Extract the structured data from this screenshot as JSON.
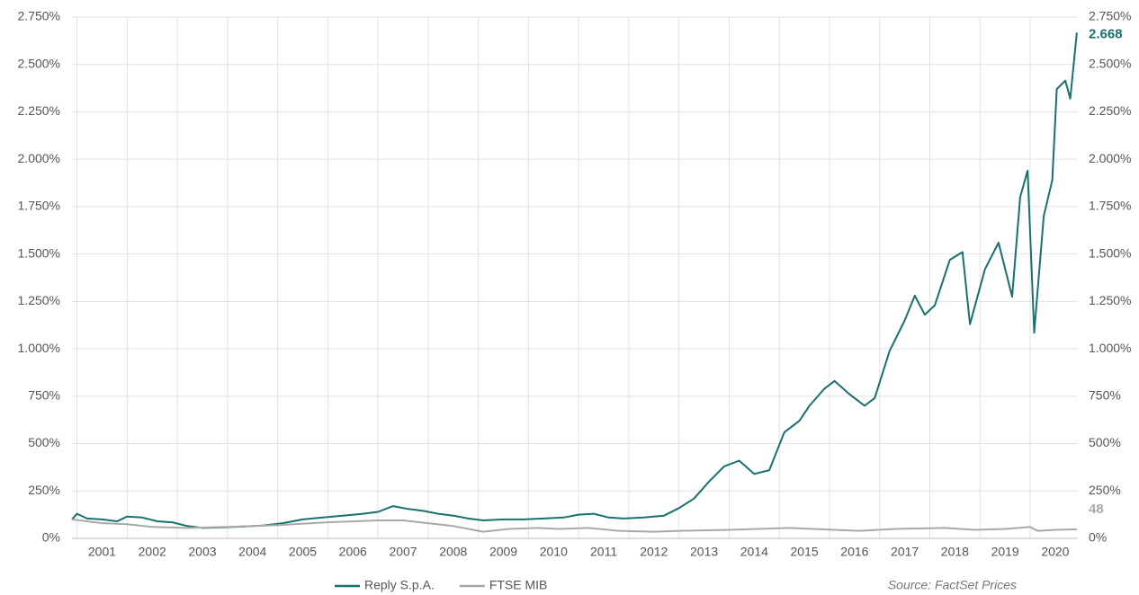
{
  "chart_data": {
    "type": "line",
    "source": "Source: FactSet Prices",
    "xlim": [
      2000.9,
      2020.95
    ],
    "xticks": [
      2001,
      2002,
      2003,
      2004,
      2005,
      2006,
      2007,
      2008,
      2009,
      2010,
      2011,
      2012,
      2013,
      2014,
      2015,
      2016,
      2017,
      2018,
      2019,
      2020
    ],
    "ylim": [
      0,
      2750
    ],
    "yticks": [
      {
        "value": 0,
        "label": "0%"
      },
      {
        "value": 250,
        "label": "250%"
      },
      {
        "value": 500,
        "label": "500%"
      },
      {
        "value": 750,
        "label": "750%"
      },
      {
        "value": 1000,
        "label": "1.000%"
      },
      {
        "value": 1250,
        "label": "1.250%"
      },
      {
        "value": 1500,
        "label": "1.500%"
      },
      {
        "value": 1750,
        "label": "1.750%"
      },
      {
        "value": 2000,
        "label": "2.000%"
      },
      {
        "value": 2250,
        "label": "2.250%"
      },
      {
        "value": 2500,
        "label": "2.500%"
      },
      {
        "value": 2750,
        "label": "2.750%"
      }
    ],
    "y2lim": [
      0,
      2750
    ],
    "y2ticks": [
      {
        "value": 0,
        "label": "0%"
      },
      {
        "value": 250,
        "label": "250%"
      },
      {
        "value": 500,
        "label": "500%"
      },
      {
        "value": 750,
        "label": "750%"
      },
      {
        "value": 1000,
        "label": "1.000%"
      },
      {
        "value": 1250,
        "label": "1.250%"
      },
      {
        "value": 1500,
        "label": "1.500%"
      },
      {
        "value": 1750,
        "label": "1.750%"
      },
      {
        "value": 2000,
        "label": "2.000%"
      },
      {
        "value": 2250,
        "label": "2.250%"
      },
      {
        "value": 2500,
        "label": "2.500%"
      },
      {
        "value": 2750,
        "label": "2.750%"
      }
    ],
    "grid": true,
    "legend": "bottom",
    "series": [
      {
        "name": "Reply S.p.A.",
        "color": "#19716f",
        "x": [
          2000.9,
          2001.0,
          2001.2,
          2001.5,
          2001.8,
          2002.0,
          2002.3,
          2002.6,
          2002.9,
          2003.2,
          2003.5,
          2003.9,
          2004.3,
          2004.7,
          2005.1,
          2005.5,
          2005.9,
          2006.3,
          2006.7,
          2007.0,
          2007.3,
          2007.6,
          2007.9,
          2008.2,
          2008.5,
          2008.8,
          2009.1,
          2009.5,
          2009.9,
          2010.3,
          2010.7,
          2011.0,
          2011.3,
          2011.6,
          2011.9,
          2012.3,
          2012.7,
          2013.0,
          2013.3,
          2013.6,
          2013.9,
          2014.2,
          2014.5,
          2014.8,
          2015.1,
          2015.4,
          2015.6,
          2015.9,
          2016.1,
          2016.4,
          2016.7,
          2016.9,
          2017.2,
          2017.5,
          2017.7,
          2017.9,
          2018.1,
          2018.4,
          2018.65,
          2018.8,
          2019.1,
          2019.37,
          2019.64,
          2019.8,
          2019.95,
          2020.08,
          2020.27,
          2020.44,
          2020.53,
          2020.7,
          2020.8,
          2020.93
        ],
        "values": [
          100,
          130,
          105,
          100,
          90,
          115,
          110,
          90,
          85,
          65,
          55,
          58,
          62,
          68,
          80,
          100,
          110,
          120,
          130,
          140,
          170,
          155,
          145,
          130,
          120,
          105,
          95,
          100,
          100,
          105,
          110,
          125,
          130,
          110,
          105,
          110,
          120,
          160,
          210,
          300,
          380,
          410,
          340,
          360,
          560,
          620,
          700,
          790,
          830,
          760,
          700,
          740,
          990,
          1150,
          1280,
          1180,
          1230,
          1470,
          1510,
          1130,
          1420,
          1560,
          1275,
          1800,
          1940,
          1085,
          1700,
          1890,
          2370,
          2415,
          2320,
          2668
        ],
        "value_labels": [
          null,
          null,
          null,
          null,
          null,
          null,
          null,
          null,
          null,
          null,
          null,
          null,
          null,
          null,
          null,
          null,
          null,
          null,
          null,
          null,
          null,
          null,
          null,
          null,
          null,
          null,
          null,
          null,
          null,
          null,
          null,
          null,
          null,
          null,
          null,
          null,
          null,
          null,
          null,
          null,
          null,
          null,
          null,
          null,
          null,
          null,
          null,
          null,
          null,
          null,
          null,
          null,
          null,
          null,
          null,
          null,
          null,
          null,
          null,
          null,
          null,
          null,
          null,
          null,
          null,
          null,
          null,
          null,
          null,
          null,
          null,
          "2.668"
        ]
      },
      {
        "name": "FTSE MIB",
        "color": "#a8a8a8",
        "x": [
          2000.9,
          2001.5,
          2002.0,
          2002.5,
          2003.2,
          2004.0,
          2005.0,
          2006.0,
          2007.0,
          2007.5,
          2008.0,
          2008.5,
          2009.1,
          2009.6,
          2010.2,
          2010.6,
          2011.2,
          2011.8,
          2012.5,
          2013.0,
          2014.0,
          2015.2,
          2016.1,
          2016.6,
          2017.3,
          2018.3,
          2018.9,
          2019.5,
          2020.0,
          2020.15,
          2020.5,
          2020.93
        ],
        "values": [
          100,
          80,
          75,
          60,
          55,
          60,
          70,
          85,
          95,
          95,
          80,
          65,
          35,
          50,
          55,
          50,
          55,
          40,
          35,
          40,
          45,
          55,
          45,
          40,
          50,
          55,
          45,
          50,
          60,
          40,
          45,
          48
        ]
      }
    ]
  }
}
